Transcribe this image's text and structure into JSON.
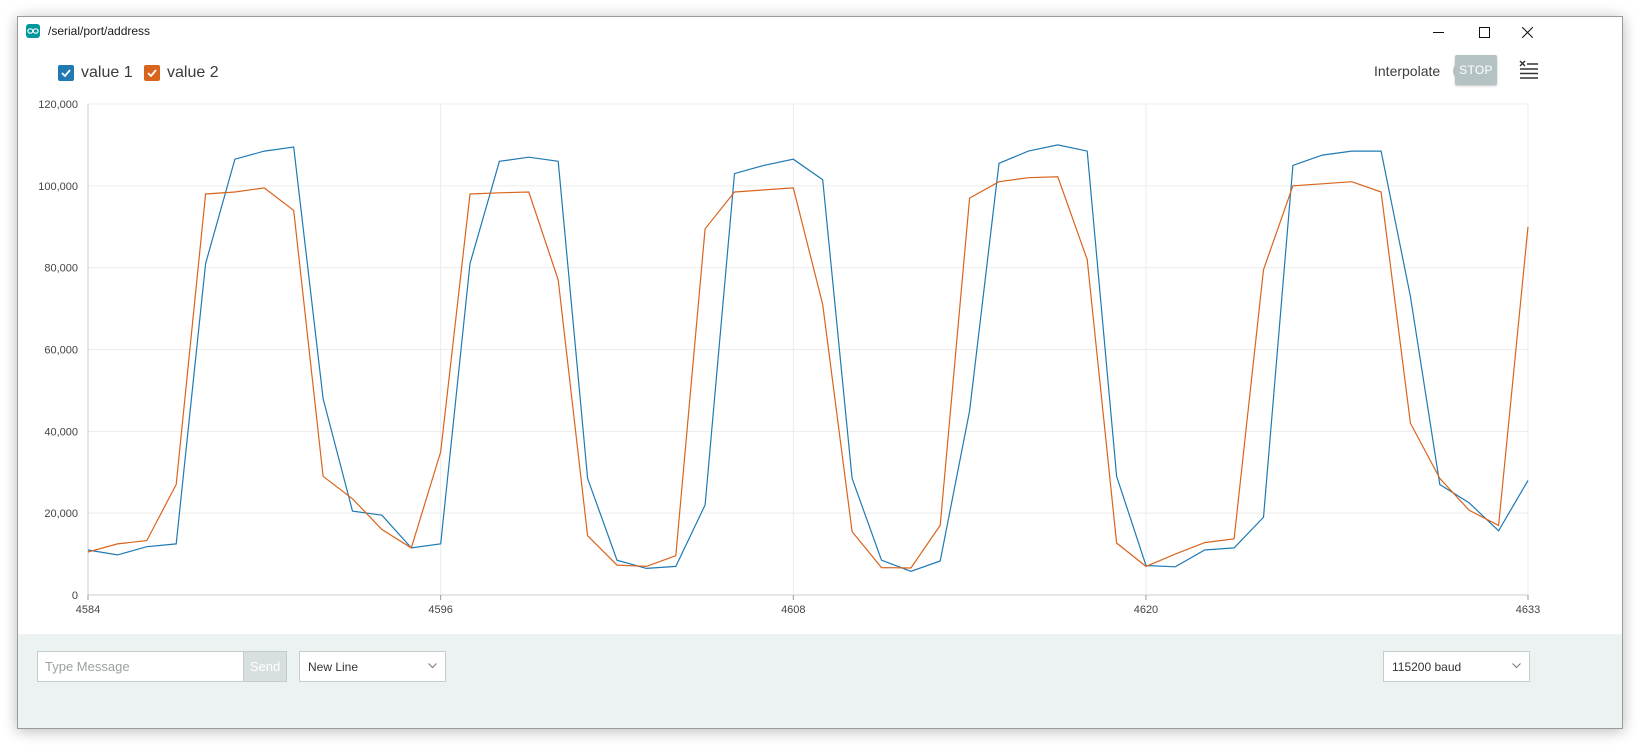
{
  "window": {
    "title": "/serial/port/address",
    "minimize_icon": "minimize-icon",
    "maximize_icon": "maximize-icon",
    "close_icon": "close-icon"
  },
  "toolbar": {
    "interpolate_label": "Interpolate",
    "interpolate_on": false,
    "stop_label": "STOP",
    "clear_icon": "clear-list-icon"
  },
  "legend": [
    {
      "label": "value 1",
      "checked": true,
      "color": "#1f7ab4"
    },
    {
      "label": "value 2",
      "checked": true,
      "color": "#d9641e"
    }
  ],
  "footer": {
    "message_placeholder": "Type Message",
    "send_label": "Send",
    "line_ending": "New Line",
    "baud_rate": "115200 baud"
  },
  "chart_data": {
    "type": "line",
    "xlim": [
      4584,
      4633
    ],
    "ylim": [
      0,
      120000
    ],
    "x_ticks": [
      4584,
      4596,
      4608,
      4620,
      4633
    ],
    "y_ticks": [
      0,
      20000,
      40000,
      60000,
      80000,
      100000,
      120000
    ],
    "y_tick_labels": [
      "0",
      "20,000",
      "40,000",
      "60,000",
      "80,000",
      "100,000",
      "120,000"
    ],
    "grid": true,
    "x": [
      4584,
      4585,
      4586,
      4587,
      4588,
      4589,
      4590,
      4591,
      4592,
      4593,
      4594,
      4595,
      4596,
      4597,
      4598,
      4599,
      4600,
      4601,
      4602,
      4603,
      4604,
      4605,
      4606,
      4607,
      4608,
      4609,
      4610,
      4611,
      4612,
      4613,
      4614,
      4615,
      4616,
      4617,
      4618,
      4619,
      4620,
      4621,
      4622,
      4623,
      4624,
      4625,
      4626,
      4627,
      4628,
      4629,
      4630,
      4631,
      4632,
      4633
    ],
    "series": [
      {
        "name": "value 1",
        "color": "#1f7ab4",
        "values": [
          11000,
          9800,
          11800,
          12500,
          81000,
          106500,
          108500,
          109500,
          48000,
          20500,
          19500,
          11500,
          12500,
          81000,
          106000,
          107000,
          106000,
          28500,
          8500,
          6500,
          7000,
          22000,
          103000,
          105000,
          106500,
          101500,
          28500,
          8500,
          5800,
          8300,
          45000,
          105500,
          108500,
          110000,
          108500,
          29000,
          7200,
          6900,
          11000,
          11500,
          19000,
          105000,
          107500,
          108500,
          108500,
          73000,
          27000,
          22500,
          15700,
          28000
        ]
      },
      {
        "name": "value 2",
        "color": "#d9641e",
        "values": [
          10500,
          12500,
          13300,
          27000,
          98000,
          98500,
          99500,
          94000,
          29000,
          23500,
          16000,
          11500,
          35000,
          98000,
          98300,
          98500,
          77000,
          14500,
          7300,
          7000,
          9600,
          89500,
          98500,
          99000,
          99500,
          71000,
          15500,
          6700,
          6600,
          17000,
          97000,
          101000,
          102000,
          102200,
          82000,
          12700,
          7000,
          10000,
          12800,
          13700,
          79500,
          100000,
          100500,
          101000,
          98500,
          42000,
          28500,
          20700,
          17000,
          90000
        ]
      }
    ]
  }
}
